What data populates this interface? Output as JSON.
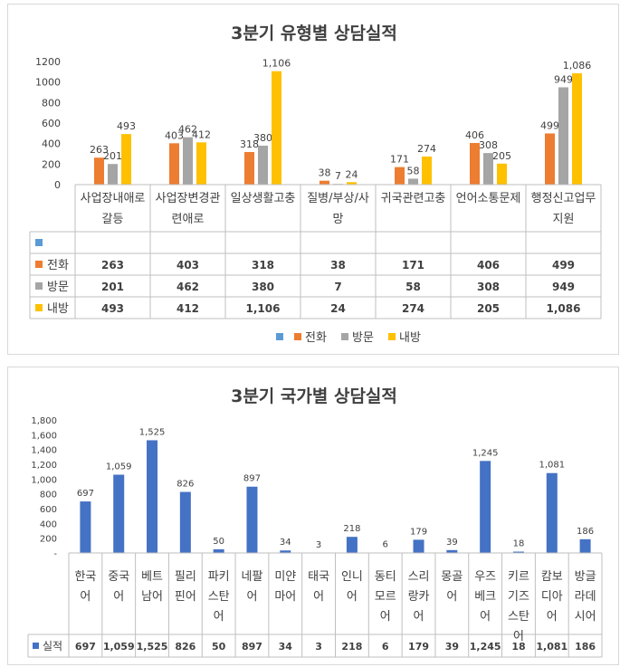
{
  "chart_data": [
    {
      "type": "bar",
      "title": "3분기 유형별 상담실적",
      "categories": [
        "사업장내애로갈등",
        "사업장변경관련애로",
        "일상생활고충",
        "질병/부상/사망",
        "귀국관련고충",
        "언어소통문제",
        "행정신고업무지원"
      ],
      "category_labels": [
        [
          "사업장내애로",
          "갈등"
        ],
        [
          "사업장변경관",
          "련애로"
        ],
        [
          "일상생활고충"
        ],
        [
          "질병/부상/사",
          "망"
        ],
        [
          "귀국관련고충"
        ],
        [
          "언어소통문제"
        ],
        [
          "행정신고업무",
          "지원"
        ]
      ],
      "series": [
        {
          "name": "",
          "color": "#5b9bd5",
          "values": [
            null,
            null,
            null,
            null,
            null,
            null,
            null
          ]
        },
        {
          "name": "전화",
          "color": "#ed7d31",
          "values": [
            263,
            403,
            318,
            38,
            171,
            406,
            499
          ]
        },
        {
          "name": "방문",
          "color": "#a5a5a5",
          "values": [
            201,
            462,
            380,
            7,
            58,
            308,
            949
          ]
        },
        {
          "name": "내방",
          "color": "#ffc000",
          "values": [
            493,
            412,
            1106,
            24,
            274,
            205,
            1086
          ]
        }
      ],
      "ylim": [
        0,
        1200
      ],
      "yticks": [
        "0",
        "200",
        "400",
        "600",
        "800",
        "1000",
        "1200"
      ],
      "grid": false,
      "data_table": true,
      "legend": "bottom"
    },
    {
      "type": "bar",
      "title": "3분기 국가별 상담실적",
      "categories": [
        "한국어",
        "중국어",
        "베트남어",
        "필리핀어",
        "파키스탄어",
        "네팔어",
        "미얀마어",
        "태국어",
        "인니어",
        "동티모르어",
        "스리랑카어",
        "몽골어",
        "우즈베크어",
        "키르기즈스탄어",
        "캄보디아어",
        "방글라데시어"
      ],
      "category_labels": [
        [
          "한국",
          "어"
        ],
        [
          "중국",
          "어"
        ],
        [
          "베트",
          "남어"
        ],
        [
          "필리",
          "핀어"
        ],
        [
          "파키",
          "스탄",
          "어"
        ],
        [
          "네팔",
          "어"
        ],
        [
          "미얀",
          "마어"
        ],
        [
          "태국",
          "어"
        ],
        [
          "인니",
          "어"
        ],
        [
          "동티",
          "모르",
          "어"
        ],
        [
          "스리",
          "랑카",
          "어"
        ],
        [
          "몽골",
          "어"
        ],
        [
          "우즈",
          "베크",
          "어"
        ],
        [
          "키르",
          "기즈",
          "스탄",
          "어"
        ],
        [
          "캄보",
          "디아",
          "어"
        ],
        [
          "방글",
          "라데",
          "시어"
        ]
      ],
      "series": [
        {
          "name": "실적",
          "color": "#4472c4",
          "values": [
            697,
            1059,
            1525,
            826,
            50,
            897,
            34,
            3,
            218,
            6,
            179,
            39,
            1245,
            18,
            1081,
            186
          ]
        }
      ],
      "ylim": [
        0,
        1800
      ],
      "yticks": [
        "-",
        "200",
        "400",
        "600",
        "800",
        "1,000",
        "1,200",
        "1,400",
        "1,600",
        "1,800"
      ],
      "grid": false,
      "data_table": true,
      "legend": "table"
    }
  ]
}
